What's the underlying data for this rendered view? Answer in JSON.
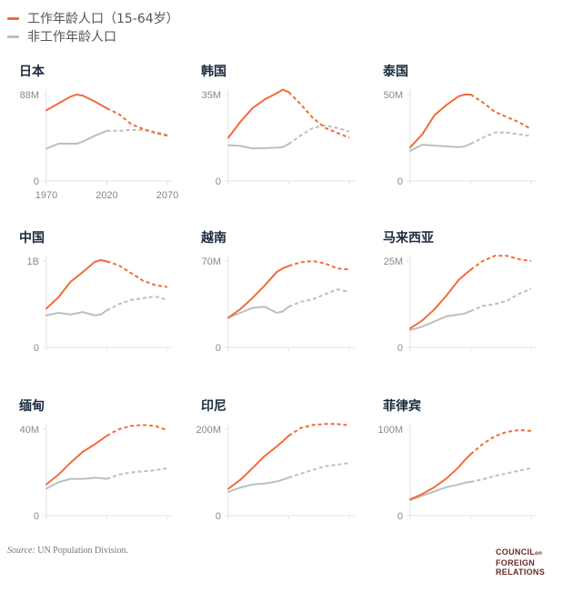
{
  "legend": [
    {
      "label": "工作年龄人口（15-64岁）",
      "color": "#f26b3a"
    },
    {
      "label": "非工作年龄人口",
      "color": "#b5c2c0"
    }
  ],
  "source_prefix": "Source:",
  "source_text": " UN Population Division.",
  "logo": {
    "line1": "COUNCIL",
    "on": "on",
    "line2": "FOREIGN",
    "line3": "RELATIONS"
  },
  "chart_data": [
    {
      "type": "line",
      "title": "日本",
      "ylim": [
        0,
        88
      ],
      "ytick_labels": [
        "0",
        "88M"
      ],
      "xlim": [
        1970,
        2070
      ],
      "xtick_labels": [
        "1970",
        "2020",
        "2070"
      ],
      "show_xtick_labels": true,
      "x": [
        1970,
        1980,
        1990,
        1995,
        2000,
        2010,
        2020,
        2030,
        2040,
        2050,
        2060,
        2070
      ],
      "series": [
        {
          "name": "工作年龄人口（15-64岁）",
          "values": [
            72,
            79,
            86,
            88,
            87,
            81,
            74,
            68,
            58,
            53,
            49,
            46
          ]
        },
        {
          "name": "非工作年龄人口",
          "values": [
            33,
            38,
            38,
            38,
            40,
            46,
            51,
            51,
            52,
            52,
            50,
            47
          ]
        }
      ],
      "projection_start": 2020
    },
    {
      "type": "line",
      "title": "韩国",
      "ylim": [
        0,
        35
      ],
      "ytick_labels": [
        "0",
        "35M"
      ],
      "xlim": [
        1970,
        2070
      ],
      "xtick_labels": [
        "1970",
        "2020",
        "2070"
      ],
      "show_xtick_labels": false,
      "x": [
        1970,
        1980,
        1990,
        2000,
        2010,
        2015,
        2020,
        2030,
        2040,
        2050,
        2060,
        2070
      ],
      "series": [
        {
          "name": "工作年龄人口（15-64岁）",
          "values": [
            17.5,
            24,
            29.5,
            33,
            35.5,
            37,
            36,
            31,
            25.5,
            21.5,
            19.5,
            17.5
          ]
        },
        {
          "name": "非工作年龄人口",
          "values": [
            14.5,
            14.2,
            13.2,
            13.3,
            13.5,
            13.7,
            15,
            18.5,
            21.5,
            22.5,
            21.5,
            20
          ]
        }
      ],
      "projection_start": 2020
    },
    {
      "type": "line",
      "title": "泰国",
      "ylim": [
        0,
        50
      ],
      "ytick_labels": [
        "0",
        "50M"
      ],
      "xlim": [
        1970,
        2070
      ],
      "xtick_labels": [
        "1970",
        "2020",
        "2070"
      ],
      "show_xtick_labels": false,
      "x": [
        1970,
        1980,
        1990,
        2000,
        2010,
        2015,
        2020,
        2030,
        2040,
        2050,
        2060,
        2070
      ],
      "series": [
        {
          "name": "工作年龄人口（15-64岁）",
          "values": [
            19.5,
            27,
            38,
            44,
            49,
            50,
            50,
            45.5,
            40,
            37,
            34,
            30
          ]
        },
        {
          "name": "非工作年龄人口",
          "values": [
            17.5,
            21,
            20.5,
            20,
            19.5,
            20,
            21.5,
            25,
            28,
            28,
            27,
            26
          ]
        }
      ],
      "projection_start": 2020
    },
    {
      "type": "line",
      "title": "中国",
      "ylim": [
        0,
        1000
      ],
      "ytick_labels": [
        "0",
        "1B"
      ],
      "xlim": [
        1970,
        2070
      ],
      "xtick_labels": [
        "1970",
        "2020",
        "2070"
      ],
      "show_xtick_labels": false,
      "x": [
        1970,
        1980,
        1990,
        2000,
        2010,
        2015,
        2020,
        2030,
        2040,
        2050,
        2060,
        2070
      ],
      "series": [
        {
          "name": "工作年龄人口（15-64岁）",
          "values": [
            450,
            580,
            760,
            870,
            990,
            1010,
            995,
            950,
            860,
            770,
            720,
            700
          ]
        },
        {
          "name": "非工作年龄人口",
          "values": [
            370,
            400,
            380,
            410,
            370,
            380,
            430,
            500,
            550,
            570,
            590,
            550
          ]
        }
      ],
      "projection_start": 2020
    },
    {
      "type": "line",
      "title": "越南",
      "ylim": [
        0,
        70
      ],
      "ytick_labels": [
        "0",
        "70M"
      ],
      "xlim": [
        1970,
        2070
      ],
      "xtick_labels": [
        "1970",
        "2020",
        "2070"
      ],
      "show_xtick_labels": false,
      "x": [
        1970,
        1980,
        1990,
        2000,
        2010,
        2015,
        2020,
        2030,
        2040,
        2050,
        2060,
        2070
      ],
      "series": [
        {
          "name": "工作年龄人口（15-64岁）",
          "values": [
            24,
            31,
            40,
            50,
            61,
            64,
            66,
            69,
            70,
            68,
            64,
            63
          ]
        },
        {
          "name": "非工作年龄人口",
          "values": [
            24,
            28,
            32,
            33,
            28,
            29,
            33,
            37,
            39,
            43,
            47,
            45
          ]
        }
      ],
      "projection_start": 2020
    },
    {
      "type": "line",
      "title": "马来西亚",
      "ylim": [
        0,
        25
      ],
      "ytick_labels": [
        "0",
        "25M"
      ],
      "xlim": [
        1970,
        2070
      ],
      "xtick_labels": [
        "1970",
        "2020",
        "2070"
      ],
      "show_xtick_labels": false,
      "x": [
        1970,
        1980,
        1990,
        2000,
        2010,
        2015,
        2020,
        2030,
        2040,
        2050,
        2060,
        2070
      ],
      "series": [
        {
          "name": "工作年龄人口（15-64岁）",
          "values": [
            5.5,
            7.8,
            11,
            15,
            19.5,
            21,
            22.5,
            25,
            26.5,
            26.5,
            25.5,
            25
          ]
        },
        {
          "name": "非工作年龄人口",
          "values": [
            5,
            6,
            7.5,
            9,
            9.5,
            9.8,
            10.5,
            12,
            12.5,
            13.5,
            15.5,
            17
          ]
        }
      ],
      "projection_start": 2020
    },
    {
      "type": "line",
      "title": "缅甸",
      "ylim": [
        0,
        40
      ],
      "ytick_labels": [
        "0",
        "40M"
      ],
      "xlim": [
        1970,
        2070
      ],
      "xtick_labels": [
        "1970",
        "2020",
        "2070"
      ],
      "show_xtick_labels": false,
      "x": [
        1970,
        1980,
        1990,
        2000,
        2010,
        2015,
        2020,
        2030,
        2040,
        2050,
        2060,
        2070
      ],
      "series": [
        {
          "name": "工作年龄人口（15-64岁）",
          "values": [
            14.5,
            19,
            24.5,
            29.5,
            33,
            35,
            37,
            40,
            41.5,
            42,
            41.5,
            39.5
          ]
        },
        {
          "name": "非工作年龄人口",
          "values": [
            12.5,
            15.5,
            17,
            17,
            17.5,
            17.3,
            17,
            19,
            20,
            20.5,
            21,
            22
          ]
        }
      ],
      "projection_start": 2020
    },
    {
      "type": "line",
      "title": "印尼",
      "ylim": [
        0,
        200
      ],
      "ytick_labels": [
        "0",
        "200M"
      ],
      "xlim": [
        1970,
        2070
      ],
      "xtick_labels": [
        "1970",
        "2020",
        "2070"
      ],
      "show_xtick_labels": false,
      "x": [
        1970,
        1980,
        1990,
        2000,
        2010,
        2015,
        2020,
        2030,
        2040,
        2050,
        2060,
        2070
      ],
      "series": [
        {
          "name": "工作年龄人口（15-64岁）",
          "values": [
            62,
            83,
            110,
            138,
            160,
            172,
            185,
            203,
            210,
            212,
            212,
            209
          ]
        },
        {
          "name": "非工作年龄人口",
          "values": [
            55,
            65,
            72,
            74,
            79,
            83,
            88,
            97,
            106,
            114,
            118,
            122
          ]
        }
      ],
      "projection_start": 2020
    },
    {
      "type": "line",
      "title": "菲律宾",
      "ylim": [
        0,
        100
      ],
      "ytick_labels": [
        "0",
        "100M"
      ],
      "xlim": [
        1970,
        2070
      ],
      "xtick_labels": [
        "1970",
        "2020",
        "2070"
      ],
      "show_xtick_labels": false,
      "x": [
        1970,
        1980,
        1990,
        2000,
        2010,
        2015,
        2020,
        2030,
        2040,
        2050,
        2060,
        2070
      ],
      "series": [
        {
          "name": "工作年龄人口（15-64岁）",
          "values": [
            19,
            25,
            33,
            43,
            56,
            64,
            71,
            83,
            92,
            97,
            99,
            98
          ]
        },
        {
          "name": "非工作年龄人口",
          "values": [
            18,
            23,
            28,
            33,
            36,
            38,
            39,
            42,
            46,
            49,
            52,
            55
          ]
        }
      ],
      "projection_start": 2020
    }
  ]
}
